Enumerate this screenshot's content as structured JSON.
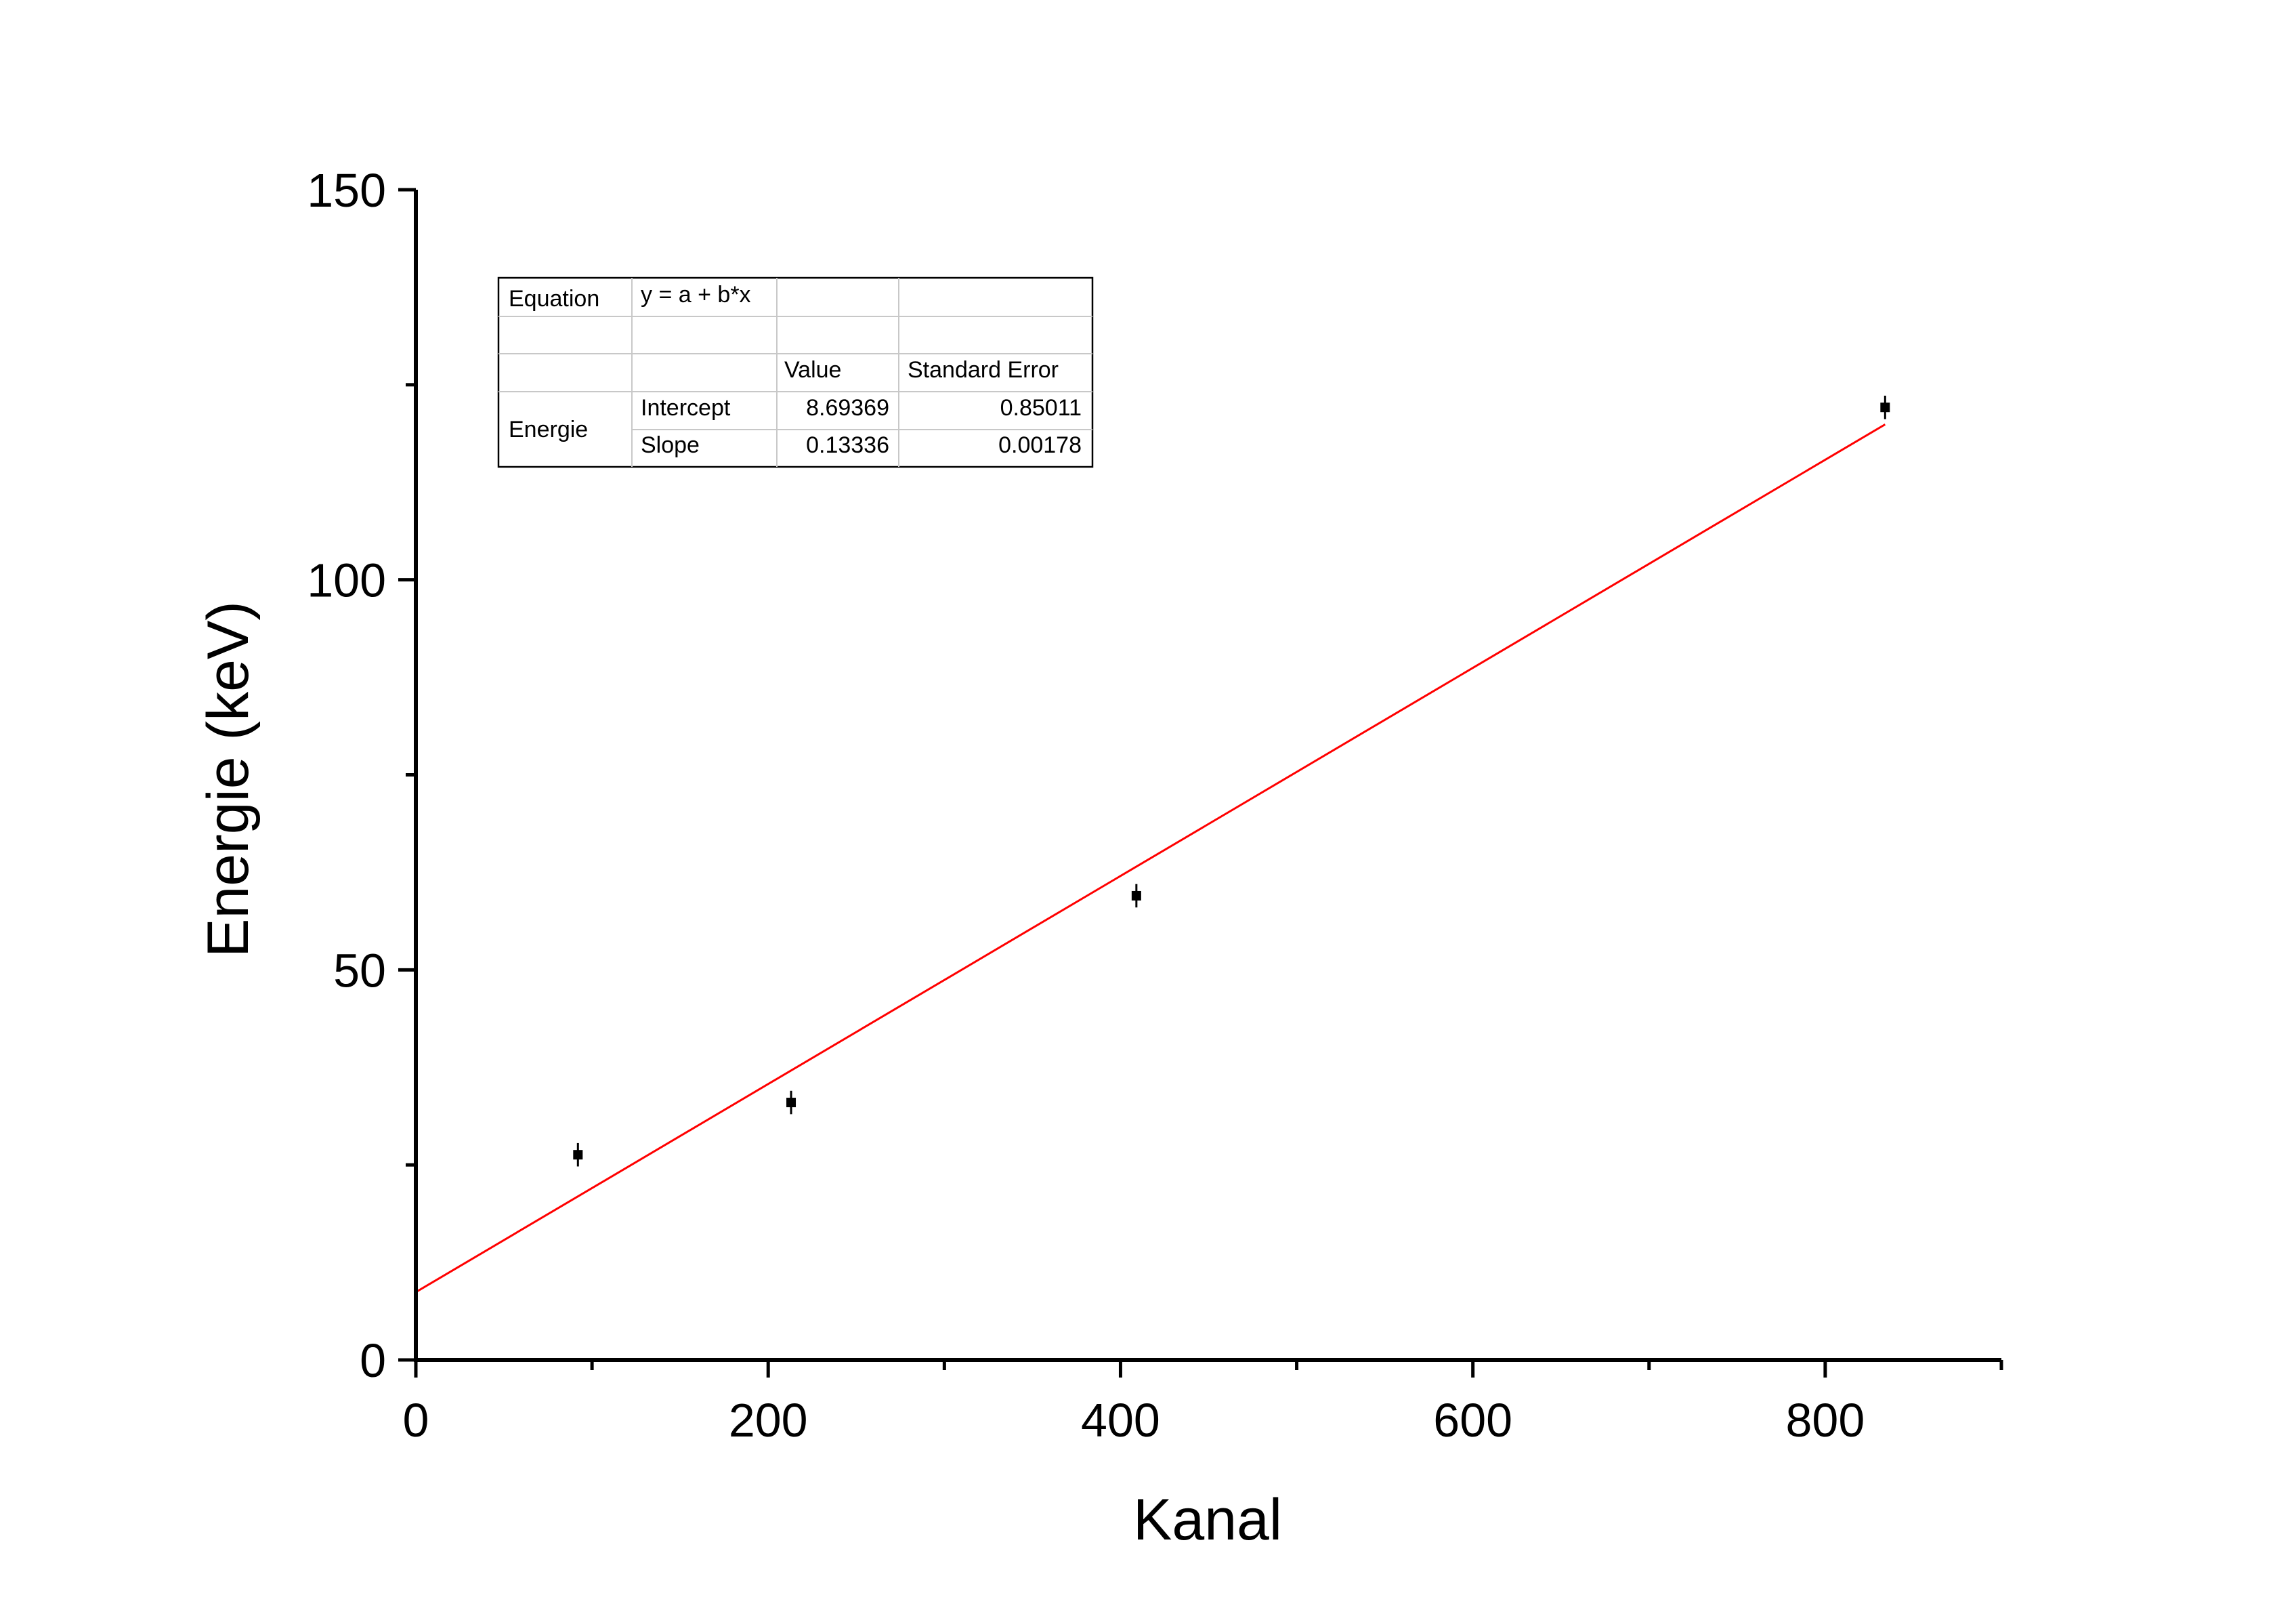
{
  "chart_data": {
    "type": "scatter",
    "title": "",
    "xlabel": "Kanal",
    "ylabel": "Energie (keV)",
    "xlim": [
      0,
      900
    ],
    "ylim": [
      0,
      150
    ],
    "x_major_ticks": [
      0,
      200,
      400,
      600,
      800
    ],
    "x_minor_ticks": [
      100,
      300,
      500,
      700,
      900
    ],
    "y_major_ticks": [
      0,
      50,
      100,
      150
    ],
    "y_minor_ticks": [
      25,
      75,
      125
    ],
    "grid": false,
    "series": [
      {
        "x": [
          92,
          213,
          409,
          834
        ],
        "y": [
          26.3,
          33.0,
          59.5,
          122.1
        ],
        "y_error": [
          1.5,
          1.5,
          1.5,
          1.5
        ],
        "color": "#000000",
        "marker": "square"
      }
    ],
    "fit": {
      "type": "linear",
      "x_range": [
        0,
        834
      ],
      "intercept": 8.69369,
      "slope": 0.13336,
      "color": "#ff0000"
    },
    "fit_table": {
      "placement": "top-left",
      "equation_label": "Equation",
      "equation": "y = a + b*x",
      "value_header": "Value",
      "error_header": "Standard Error",
      "group_label": "Energie",
      "rows": [
        {
          "param": "Intercept",
          "value": "8.69369",
          "error": "0.85011"
        },
        {
          "param": "Slope",
          "value": "0.13336",
          "error": "0.00178"
        }
      ]
    }
  }
}
